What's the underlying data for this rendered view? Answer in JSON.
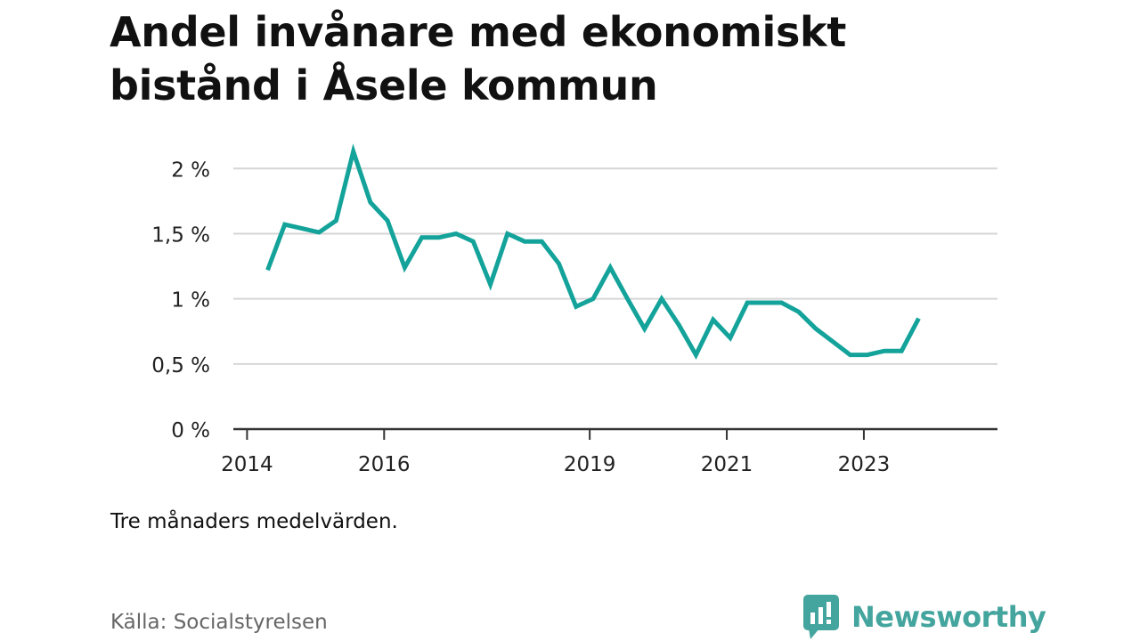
{
  "title": "Andel invånare med ekonomiskt bistånd i Åsele kommun",
  "note": "Tre månaders medelvärden.",
  "source": "Källa: Socialstyrelsen",
  "brand": {
    "name": "Newsworthy",
    "color": "#44a59e",
    "icon": "newsworthy-bar-chart-bubble-icon"
  },
  "colors": {
    "line": "#14a39a",
    "grid": "#d6d6d6",
    "axis": "#333333"
  },
  "chart_data": {
    "type": "line",
    "title": "Andel invånare med ekonomiskt bistånd i Åsele kommun",
    "xlabel": "",
    "ylabel": "",
    "ylim": [
      0,
      2.2
    ],
    "xlim": [
      2013.8,
      2024.95
    ],
    "y_ticks": [
      0,
      0.5,
      1,
      1.5,
      2
    ],
    "y_tick_labels": [
      "0 %",
      "0,5 %",
      "1 %",
      "1,5 %",
      "2 %"
    ],
    "x_ticks": [
      2014,
      2016,
      2019,
      2021,
      2023
    ],
    "x_tick_labels": [
      "2014",
      "2016",
      "2019",
      "2021",
      "2023"
    ],
    "grid": true,
    "legend": "none",
    "series": [
      {
        "x": [
          2014.3,
          2014.55,
          2014.8,
          2015.05,
          2015.3,
          2015.55,
          2015.8,
          2016.05,
          2016.3,
          2016.55,
          2016.8,
          2017.05,
          2017.3,
          2017.55,
          2017.8,
          2018.05,
          2018.3,
          2018.55,
          2018.8,
          2019.05,
          2019.3,
          2019.55,
          2019.8,
          2020.05,
          2020.3,
          2020.55,
          2020.8,
          2021.05,
          2021.3,
          2021.55,
          2021.8,
          2022.05,
          2022.3,
          2022.55,
          2022.8,
          2023.05,
          2023.3,
          2023.55,
          2023.8
        ],
        "values": [
          1.22,
          1.57,
          1.54,
          1.51,
          1.6,
          2.13,
          1.74,
          1.6,
          1.24,
          1.47,
          1.47,
          1.5,
          1.44,
          1.11,
          1.5,
          1.44,
          1.44,
          1.27,
          0.94,
          1.0,
          1.24,
          1.0,
          0.77,
          1.0,
          0.8,
          0.57,
          0.84,
          0.7,
          0.97,
          0.97,
          0.97,
          0.9,
          0.77,
          0.67,
          0.57,
          0.57,
          0.6,
          0.6,
          0.85
        ]
      }
    ]
  }
}
